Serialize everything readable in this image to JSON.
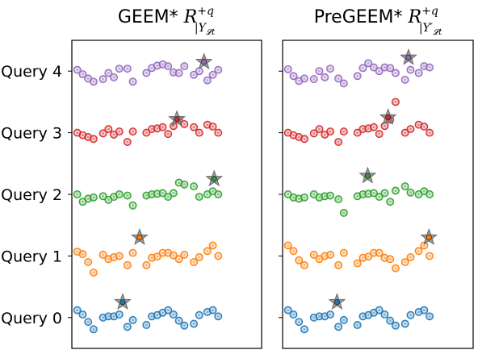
{
  "chart_data": [
    {
      "type": "scatter",
      "title_text": "GEEM*",
      "title_math": {
        "base": "R",
        "sup": "+q",
        "sub": "|Y",
        "subsub": "𝓛t"
      },
      "xlim": [
        0,
        28
      ],
      "ylim": [
        4.5,
        -0.5
      ],
      "ytick_labels": [
        "Query 0",
        "Query 1",
        "Query 2",
        "Query 3",
        "Query 4"
      ],
      "grid": false,
      "legend": "none",
      "series": [
        {
          "row": 0,
          "color": "#1f77b4",
          "points": [
            [
              0.8,
              0.12
            ],
            [
              1.6,
              0.05
            ],
            [
              2.4,
              -0.07
            ],
            [
              3.2,
              -0.19
            ],
            [
              4.6,
              0
            ],
            [
              5.4,
              0.02
            ],
            [
              6.2,
              0.02
            ],
            [
              7.0,
              0.05
            ],
            [
              8.2,
              -0.15
            ],
            [
              9.0,
              -0.04
            ],
            [
              11.0,
              -0.12
            ],
            [
              11.8,
              0.02
            ],
            [
              12.6,
              0.04
            ],
            [
              13.4,
              0.08
            ],
            [
              14.2,
              0.12
            ],
            [
              15.0,
              0.05
            ],
            [
              15.8,
              -0.05
            ],
            [
              16.6,
              -0.13
            ],
            [
              18.0,
              -0.1
            ],
            [
              18.8,
              0.04
            ],
            [
              20.0,
              0.09
            ],
            [
              20.8,
              0.12
            ],
            [
              21.6,
              0.02
            ]
          ],
          "star": [
            7.5,
            0.25
          ]
        },
        {
          "row": 1,
          "color": "#ff7f0e",
          "points": [
            [
              0.8,
              0.07
            ],
            [
              1.6,
              0.03
            ],
            [
              2.4,
              -0.1
            ],
            [
              3.2,
              -0.27
            ],
            [
              4.6,
              0.02
            ],
            [
              5.4,
              -0.05
            ],
            [
              6.2,
              -0.02
            ],
            [
              7.0,
              0
            ],
            [
              8.2,
              -0.15
            ],
            [
              9.0,
              0.05
            ],
            [
              11.0,
              -0.15
            ],
            [
              11.8,
              -0.03
            ],
            [
              12.6,
              -0.01
            ],
            [
              13.4,
              0.05
            ],
            [
              14.2,
              0.05
            ],
            [
              15.0,
              0.01
            ],
            [
              15.8,
              -0.05
            ],
            [
              16.6,
              0.02
            ],
            [
              18.0,
              -0.1
            ],
            [
              18.8,
              -0.02
            ],
            [
              20.0,
              0.08
            ],
            [
              20.8,
              0.17
            ],
            [
              21.6,
              0.0
            ]
          ],
          "star": [
            10.0,
            0.3
          ]
        },
        {
          "row": 2,
          "color": "#2ca02c",
          "points": [
            [
              0.8,
              0.0
            ],
            [
              1.6,
              -0.12
            ],
            [
              2.4,
              -0.07
            ],
            [
              3.2,
              -0.05
            ],
            [
              4.6,
              -0.03
            ],
            [
              5.4,
              -0.09
            ],
            [
              6.2,
              -0.04
            ],
            [
              7.0,
              0.0
            ],
            [
              8.2,
              -0.02
            ],
            [
              9.0,
              -0.18
            ],
            [
              11.0,
              -0.02
            ],
            [
              11.8,
              0.0
            ],
            [
              12.6,
              0.01
            ],
            [
              13.4,
              0.02
            ],
            [
              14.2,
              -0.04
            ],
            [
              15.0,
              0.02
            ],
            [
              15.8,
              0.19
            ],
            [
              16.6,
              0.16
            ],
            [
              18.0,
              0.13
            ],
            [
              18.8,
              -0.04
            ],
            [
              20.0,
              0.0
            ],
            [
              20.8,
              0.05
            ],
            [
              21.6,
              0.0
            ]
          ],
          "star": [
            21.0,
            0.25
          ]
        },
        {
          "row": 3,
          "color": "#d62728",
          "points": [
            [
              0.8,
              0.0
            ],
            [
              1.6,
              -0.04
            ],
            [
              2.4,
              -0.07
            ],
            [
              3.2,
              -0.1
            ],
            [
              4.6,
              -0.01
            ],
            [
              5.4,
              0.06
            ],
            [
              6.2,
              -0.03
            ],
            [
              7.0,
              0.02
            ],
            [
              8.2,
              -0.15
            ],
            [
              9.0,
              0.02
            ],
            [
              11.0,
              0.0
            ],
            [
              11.8,
              0.06
            ],
            [
              12.6,
              0.07
            ],
            [
              13.4,
              0.09
            ],
            [
              14.2,
              -0.02
            ],
            [
              15.0,
              0.11
            ],
            [
              15.8,
              0.21
            ],
            [
              16.6,
              0.14
            ],
            [
              18.0,
              0.09
            ],
            [
              18.8,
              0.0
            ],
            [
              20.0,
              0.13
            ],
            [
              20.8,
              0.1
            ],
            [
              21.6,
              0.0
            ]
          ],
          "star": [
            15.5,
            0.22
          ]
        },
        {
          "row": 4,
          "color": "#9467bd",
          "points": [
            [
              0.8,
              0.02
            ],
            [
              1.6,
              -0.05
            ],
            [
              2.4,
              -0.12
            ],
            [
              3.2,
              -0.17
            ],
            [
              4.6,
              -0.13
            ],
            [
              5.4,
              -0.03
            ],
            [
              6.2,
              -0.1
            ],
            [
              7.0,
              0.04
            ],
            [
              8.2,
              0.04
            ],
            [
              9.0,
              -0.17
            ],
            [
              11.0,
              -0.03
            ],
            [
              11.8,
              0.05
            ],
            [
              12.6,
              0.09
            ],
            [
              13.4,
              0.11
            ],
            [
              14.2,
              0.08
            ],
            [
              15.0,
              -0.02
            ],
            [
              15.8,
              -0.03
            ],
            [
              16.6,
              0.08
            ],
            [
              18.0,
              -0.06
            ],
            [
              18.8,
              0.0
            ],
            [
              20.0,
              -0.15
            ],
            [
              20.8,
              -0.06
            ],
            [
              21.6,
              0.02
            ]
          ],
          "star": [
            19.5,
            0.15
          ]
        }
      ]
    },
    {
      "type": "scatter",
      "title_text": "PreGEEM*",
      "title_math": {
        "base": "R",
        "sup": "+q",
        "sub": "|Y′",
        "subsub": "𝓛t"
      },
      "xlim": [
        0,
        28
      ],
      "ylim": [
        4.5,
        -0.5
      ],
      "ytick_labels": [
        "",
        "",
        "",
        "",
        ""
      ],
      "grid": false,
      "legend": "none",
      "series": [
        {
          "row": 0,
          "color": "#1f77b4",
          "points": [
            [
              0.8,
              0.12
            ],
            [
              1.6,
              0.05
            ],
            [
              2.4,
              -0.07
            ],
            [
              3.2,
              -0.19
            ],
            [
              4.6,
              0
            ],
            [
              5.4,
              0.02
            ],
            [
              6.2,
              0.02
            ],
            [
              7.0,
              0.05
            ],
            [
              8.2,
              -0.15
            ],
            [
              9.0,
              -0.04
            ],
            [
              11.0,
              -0.12
            ],
            [
              11.8,
              0.02
            ],
            [
              12.6,
              0.04
            ],
            [
              13.4,
              0.08
            ],
            [
              14.2,
              0.12
            ],
            [
              15.0,
              0.05
            ],
            [
              15.8,
              -0.05
            ],
            [
              16.6,
              -0.13
            ],
            [
              18.0,
              -0.1
            ],
            [
              18.8,
              0.04
            ],
            [
              20.0,
              0.09
            ],
            [
              20.8,
              0.12
            ],
            [
              21.6,
              0.02
            ]
          ],
          "star": [
            8.0,
            0.25
          ]
        },
        {
          "row": 1,
          "color": "#ff7f0e",
          "points": [
            [
              0.8,
              0.17
            ],
            [
              1.6,
              0.08
            ],
            [
              2.4,
              -0.07
            ],
            [
              3.2,
              -0.15
            ],
            [
              4.6,
              0.02
            ],
            [
              5.4,
              -0.05
            ],
            [
              6.2,
              0.0
            ],
            [
              7.0,
              0.02
            ],
            [
              8.2,
              -0.15
            ],
            [
              9.0,
              0.05
            ],
            [
              11.0,
              -0.12
            ],
            [
              11.8,
              -0.03
            ],
            [
              12.6,
              -0.01
            ],
            [
              13.4,
              0.05
            ],
            [
              14.2,
              0.05
            ],
            [
              15.0,
              -0.03
            ],
            [
              15.8,
              -0.05
            ],
            [
              16.6,
              -0.2
            ],
            [
              18.0,
              -0.1
            ],
            [
              18.8,
              -0.02
            ],
            [
              20.0,
              0.08
            ],
            [
              20.8,
              0.17
            ],
            [
              21.6,
              0.0
            ]
          ],
          "star": [
            21.5,
            0.3
          ]
        },
        {
          "row": 2,
          "color": "#2ca02c",
          "points": [
            [
              0.8,
              0.0
            ],
            [
              1.6,
              -0.05
            ],
            [
              2.4,
              -0.07
            ],
            [
              3.2,
              -0.05
            ],
            [
              4.6,
              0.0
            ],
            [
              5.4,
              -0.05
            ],
            [
              6.2,
              -0.03
            ],
            [
              7.0,
              -0.02
            ],
            [
              8.2,
              -0.08
            ],
            [
              9.0,
              -0.3
            ],
            [
              11.0,
              -0.03
            ],
            [
              11.8,
              0.0
            ],
            [
              12.6,
              0.01
            ],
            [
              13.4,
              0.02
            ],
            [
              14.2,
              -0.04
            ],
            [
              15.0,
              0.02
            ],
            [
              15.8,
              -0.12
            ],
            [
              16.6,
              0.06
            ],
            [
              18.0,
              0.13
            ],
            [
              18.8,
              0.03
            ],
            [
              20.0,
              0.0
            ],
            [
              20.8,
              0.05
            ],
            [
              21.6,
              0.0
            ]
          ],
          "star": [
            12.5,
            0.3
          ]
        },
        {
          "row": 3,
          "color": "#d62728",
          "points": [
            [
              0.8,
              0.0
            ],
            [
              1.6,
              -0.04
            ],
            [
              2.4,
              -0.07
            ],
            [
              3.2,
              -0.1
            ],
            [
              4.6,
              -0.01
            ],
            [
              5.4,
              0.06
            ],
            [
              6.2,
              -0.03
            ],
            [
              7.0,
              0.02
            ],
            [
              8.2,
              -0.15
            ],
            [
              9.0,
              0.02
            ],
            [
              11.0,
              0.0
            ],
            [
              11.8,
              0.06
            ],
            [
              12.6,
              0.07
            ],
            [
              13.4,
              0.09
            ],
            [
              14.2,
              -0.02
            ],
            [
              15.0,
              0.11
            ],
            [
              15.8,
              0.21
            ],
            [
              16.6,
              0.5
            ],
            [
              18.0,
              0.0
            ],
            [
              18.8,
              0.06
            ],
            [
              20.0,
              0.13
            ],
            [
              20.8,
              0.1
            ],
            [
              21.6,
              0.0
            ]
          ],
          "star": [
            15.5,
            0.25
          ]
        },
        {
          "row": 4,
          "color": "#9467bd",
          "points": [
            [
              0.8,
              0.03
            ],
            [
              1.6,
              -0.08
            ],
            [
              2.4,
              -0.16
            ],
            [
              3.2,
              -0.12
            ],
            [
              4.6,
              -0.13
            ],
            [
              5.4,
              0.0
            ],
            [
              6.2,
              -0.1
            ],
            [
              7.0,
              0.04
            ],
            [
              8.2,
              -0.12
            ],
            [
              9.0,
              -0.2
            ],
            [
              11.0,
              -0.08
            ],
            [
              11.8,
              0.05
            ],
            [
              12.6,
              0.13
            ],
            [
              13.4,
              0.06
            ],
            [
              14.2,
              0.0
            ],
            [
              15.0,
              0.06
            ],
            [
              15.8,
              0.05
            ],
            [
              16.6,
              -0.03
            ],
            [
              18.0,
              -0.14
            ],
            [
              18.8,
              0.02
            ],
            [
              20.0,
              -0.03
            ],
            [
              20.8,
              0.08
            ],
            [
              21.6,
              0.06
            ]
          ],
          "star": [
            18.5,
            0.22
          ]
        }
      ]
    }
  ]
}
